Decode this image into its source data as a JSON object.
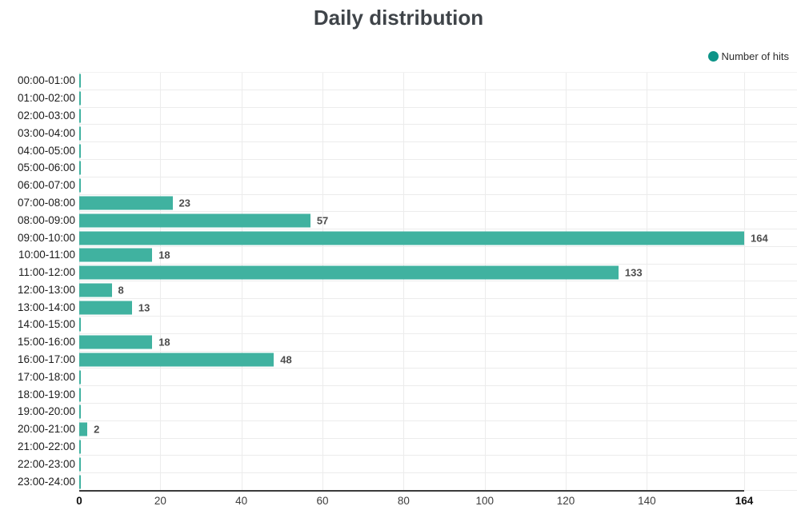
{
  "chart_data": {
    "type": "bar",
    "orientation": "horizontal",
    "title": "Daily distribution",
    "categories": [
      "00:00-01:00",
      "01:00-02:00",
      "02:00-03:00",
      "03:00-04:00",
      "04:00-05:00",
      "05:00-06:00",
      "06:00-07:00",
      "07:00-08:00",
      "08:00-09:00",
      "09:00-10:00",
      "10:00-11:00",
      "11:00-12:00",
      "12:00-13:00",
      "13:00-14:00",
      "14:00-15:00",
      "15:00-16:00",
      "16:00-17:00",
      "17:00-18:00",
      "18:00-19:00",
      "19:00-20:00",
      "20:00-21:00",
      "21:00-22:00",
      "22:00-23:00",
      "23:00-24:00"
    ],
    "series": [
      {
        "name": "Number of hits",
        "values": [
          0,
          0,
          0,
          0,
          0,
          0,
          0,
          23,
          57,
          164,
          18,
          133,
          8,
          13,
          0,
          18,
          48,
          0,
          0,
          0,
          2,
          0,
          0,
          0
        ],
        "color": "#40b2a0",
        "legend_color": "#0d9488"
      }
    ],
    "xlim": [
      0,
      164
    ],
    "x_ticks": [
      0,
      20,
      40,
      60,
      80,
      100,
      120,
      140,
      164
    ],
    "grid": true,
    "legend_position": "top-right",
    "value_labels": true,
    "hide_zero_value_labels": true
  },
  "colors": {
    "bar": "#40b2a0",
    "legend_marker": "#0d9488",
    "gridline": "#ececec",
    "axis_line": "#3a3a3a"
  }
}
